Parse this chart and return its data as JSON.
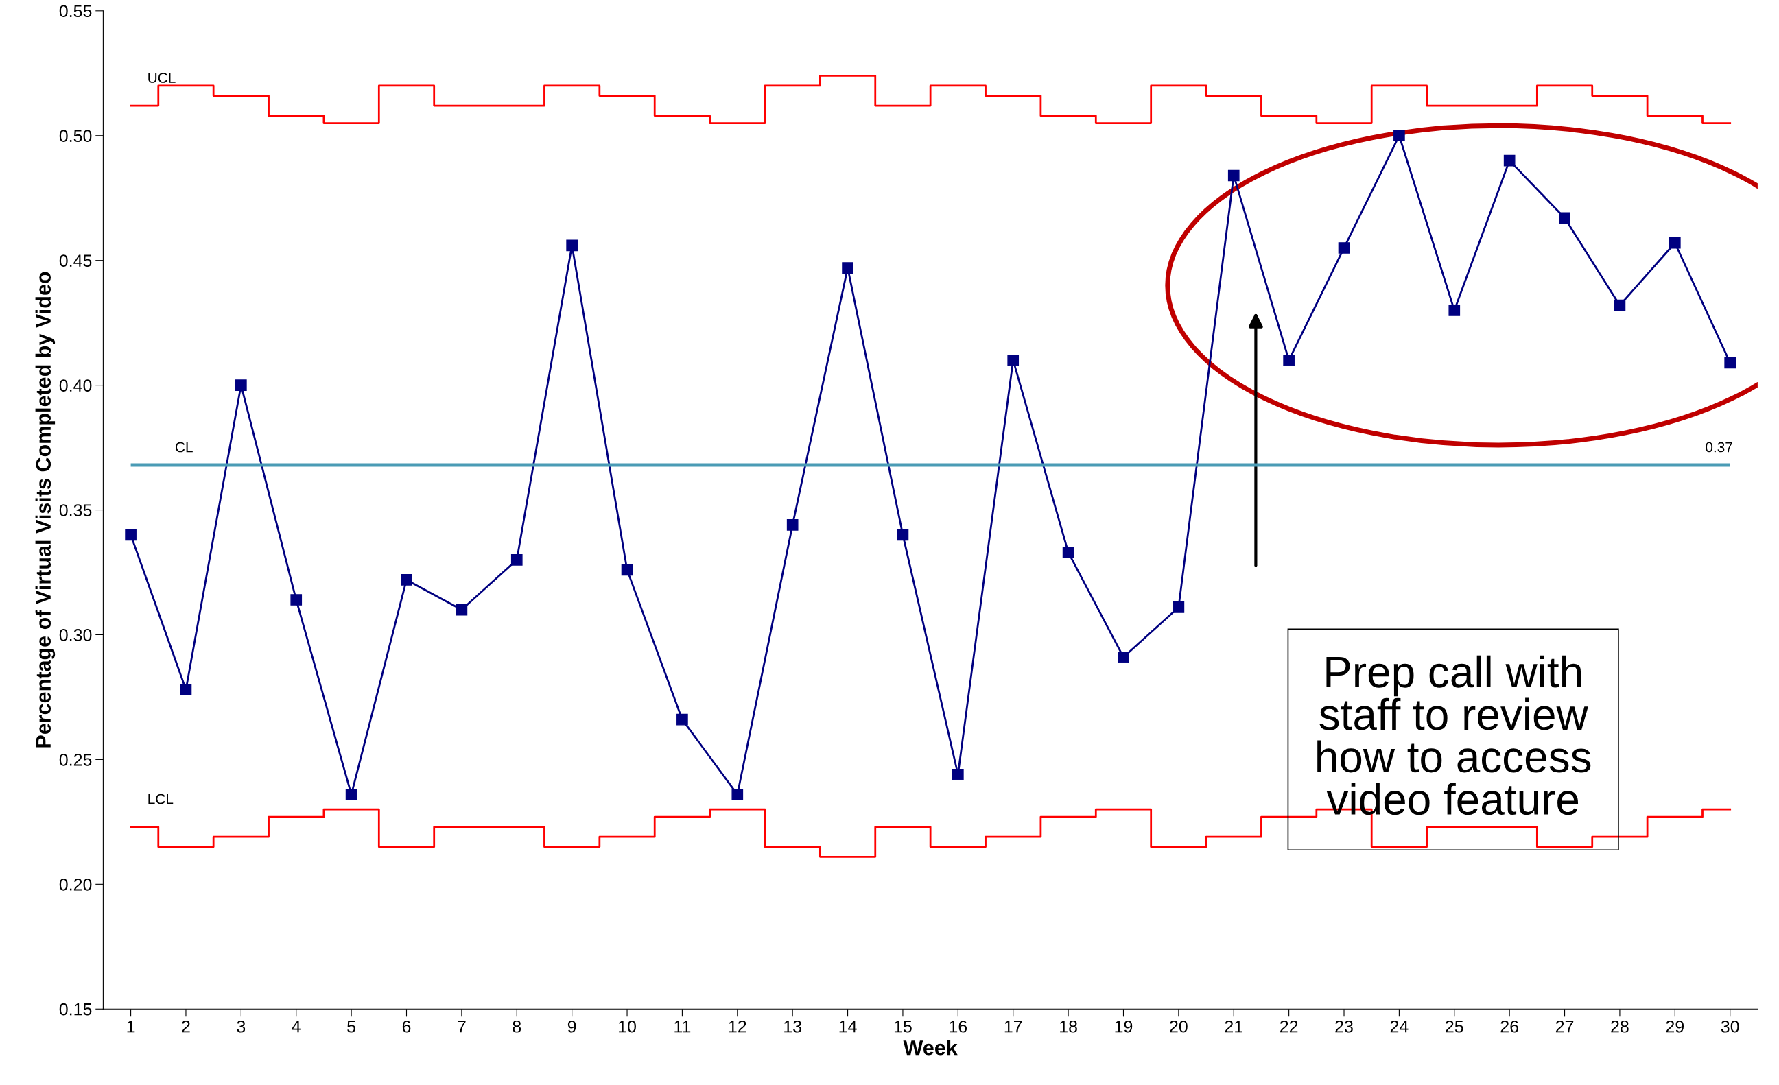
{
  "chart_data": {
    "type": "line",
    "xlabel": "Week",
    "ylabel": "Percentage of Virtual Visits Completed by Video",
    "x": [
      1,
      2,
      3,
      4,
      5,
      6,
      7,
      8,
      9,
      10,
      11,
      12,
      13,
      14,
      15,
      16,
      17,
      18,
      19,
      20,
      21,
      22,
      23,
      24,
      25,
      26,
      27,
      28,
      29,
      30
    ],
    "series": [
      {
        "name": "UCL",
        "type": "step",
        "color": "#ff0000",
        "marker": "none",
        "values": [
          0.512,
          0.52,
          0.516,
          0.508,
          0.505,
          0.52,
          0.512,
          0.512,
          0.52,
          0.516,
          0.508,
          0.505,
          0.52,
          0.524,
          0.512,
          0.52,
          0.516,
          0.508,
          0.505,
          0.52,
          0.516,
          0.508,
          0.505,
          0.52,
          0.512,
          0.512,
          0.52,
          0.516,
          0.508,
          0.505
        ]
      },
      {
        "name": "LCL",
        "type": "step",
        "color": "#ff0000",
        "marker": "none",
        "values": [
          0.223,
          0.215,
          0.219,
          0.227,
          0.23,
          0.215,
          0.223,
          0.223,
          0.215,
          0.219,
          0.227,
          0.23,
          0.215,
          0.211,
          0.223,
          0.215,
          0.219,
          0.227,
          0.23,
          0.215,
          0.219,
          0.227,
          0.23,
          0.215,
          0.223,
          0.223,
          0.215,
          0.219,
          0.227,
          0.23
        ]
      },
      {
        "color": "#000080",
        "marker": "square",
        "values": [
          0.34,
          0.278,
          0.4,
          0.314,
          0.236,
          0.322,
          0.31,
          0.33,
          0.456,
          0.326,
          0.266,
          0.236,
          0.344,
          0.447,
          0.34,
          0.244,
          0.41,
          0.333,
          0.291,
          0.311,
          0.484,
          0.41,
          0.455,
          0.5,
          0.43,
          0.49,
          0.467,
          0.432,
          0.457,
          0.409
        ]
      }
    ],
    "ref_lines": [
      {
        "axis": "y",
        "value": 0.368,
        "label": "CL",
        "color": "#4a9bb5"
      }
    ],
    "annotations": [
      {
        "text": "0.37",
        "x": 29.8,
        "y": 0.368
      },
      "Prep call with\nstaff to review\nhow to access\nvideo feature"
    ],
    "xlim": [
      0.5,
      30.5
    ],
    "xticks": [
      1,
      2,
      3,
      4,
      5,
      6,
      7,
      8,
      9,
      10,
      11,
      12,
      13,
      14,
      15,
      16,
      17,
      18,
      19,
      20,
      21,
      22,
      23,
      24,
      25,
      26,
      27,
      28,
      29,
      30
    ],
    "ylim": [
      0.15,
      0.55
    ],
    "yticks": [
      {
        "value": 0.15,
        "label": "0.15"
      },
      {
        "value": 0.2,
        "label": "0.20"
      },
      {
        "value": 0.25,
        "label": "0.25"
      },
      {
        "value": 0.3,
        "label": "0.30"
      },
      {
        "value": 0.35,
        "label": "0.35"
      },
      {
        "value": 0.4,
        "label": "0.40"
      },
      {
        "value": 0.45,
        "label": "0.45"
      },
      {
        "value": 0.5,
        "label": "0.50"
      },
      {
        "value": 0.55,
        "label": "0.55"
      }
    ],
    "grid": false,
    "legend": false
  }
}
